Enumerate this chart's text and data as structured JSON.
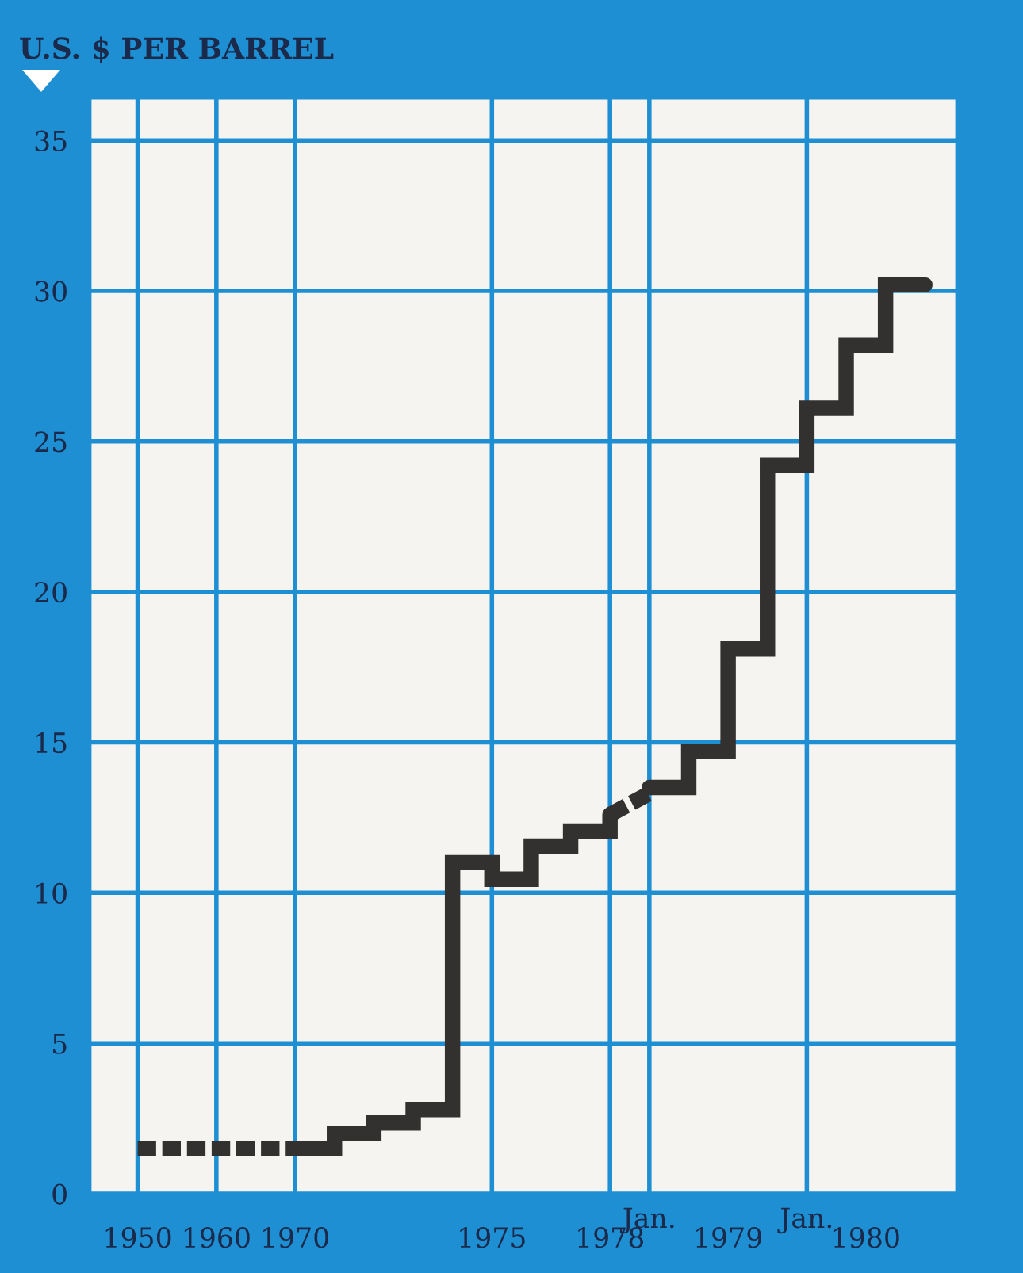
{
  "chart_data": {
    "type": "step",
    "title": "U.S. $ PER BARREL",
    "categories": [
      "1950",
      null,
      "1960",
      null,
      "1970",
      null,
      null,
      null,
      null,
      "1975",
      null,
      null,
      "1978",
      "Jan.",
      null,
      null,
      null,
      "Jan.",
      null,
      null,
      null
    ],
    "ylim": [
      0,
      36.4
    ],
    "yticks": [
      0,
      5,
      10,
      15,
      20,
      25,
      30,
      35
    ],
    "grid": true,
    "annotations": [
      "1979",
      "1980"
    ],
    "series": [
      {
        "color": "#333030",
        "line_style": "dashed",
        "values": [
          1.5,
          1.5,
          1.5,
          1.5,
          1.5,
          null,
          null,
          null,
          null,
          null,
          null,
          null,
          null,
          null,
          null,
          null,
          null,
          null,
          null,
          null,
          null
        ]
      },
      {
        "color": "#333030",
        "line_style": "solid",
        "values": [
          null,
          null,
          null,
          null,
          1.5,
          2.0,
          2.35,
          2.8,
          11.0,
          10.45,
          11.55,
          12.05,
          12.6,
          null,
          null,
          null,
          null,
          null,
          null,
          null,
          null
        ]
      },
      {
        "color": "#333030",
        "type": "line",
        "line_style": "dashed",
        "values": [
          null,
          null,
          null,
          null,
          null,
          null,
          null,
          null,
          null,
          null,
          null,
          null,
          12.6,
          13.3,
          null,
          null,
          null,
          null,
          null,
          null,
          null
        ]
      },
      {
        "color": "#333030",
        "line_style": "solid",
        "values": [
          null,
          null,
          null,
          null,
          null,
          null,
          null,
          null,
          null,
          null,
          null,
          null,
          null,
          13.5,
          14.7,
          18.1,
          24.2,
          26.1,
          28.2,
          30.2,
          30.2
        ]
      }
    ]
  }
}
